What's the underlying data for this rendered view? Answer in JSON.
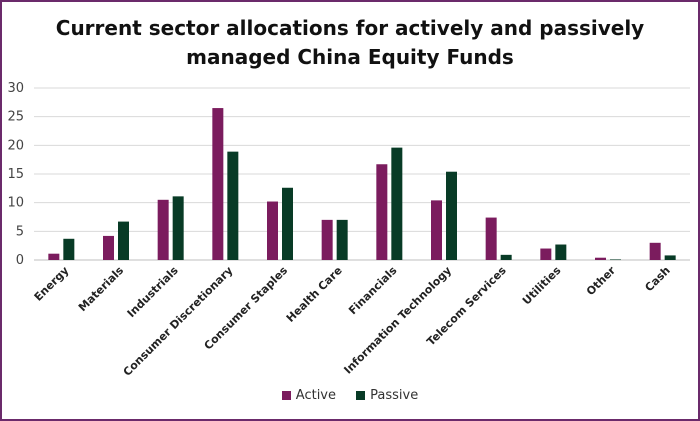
{
  "colors": {
    "active": "#7b1c5e",
    "passive": "#083b26",
    "grid": "#d9d9d9",
    "axis": "#bfbfbf",
    "border": "#6b2a6b"
  },
  "chart_data": {
    "type": "bar",
    "title": "Current sector allocations for actively and passively managed China Equity Funds",
    "title_lines": [
      "Current sector allocations for actively and passively",
      "managed China Equity Funds"
    ],
    "xlabel": "",
    "ylabel": "",
    "ylim": [
      0,
      30
    ],
    "yticks": [
      "0",
      "5",
      "10",
      "15",
      "20",
      "25",
      "30"
    ],
    "grid": true,
    "legend_position": "bottom",
    "categories": [
      "Energy",
      "Materials",
      "Industrials",
      "Consumer Discretionary",
      "Consumer Staples",
      "Health Care",
      "Financials",
      "Information Technology",
      "Telecom Services",
      "Utilities",
      "Other",
      "Cash"
    ],
    "series": [
      {
        "name": "Active",
        "values": [
          1.1,
          4.2,
          10.5,
          26.5,
          10.2,
          7.0,
          16.7,
          10.4,
          7.4,
          2.0,
          0.4,
          3.0
        ]
      },
      {
        "name": "Passive",
        "values": [
          3.7,
          6.7,
          11.1,
          18.9,
          12.6,
          7.0,
          19.6,
          15.4,
          0.9,
          2.7,
          0.1,
          0.8
        ]
      }
    ]
  }
}
